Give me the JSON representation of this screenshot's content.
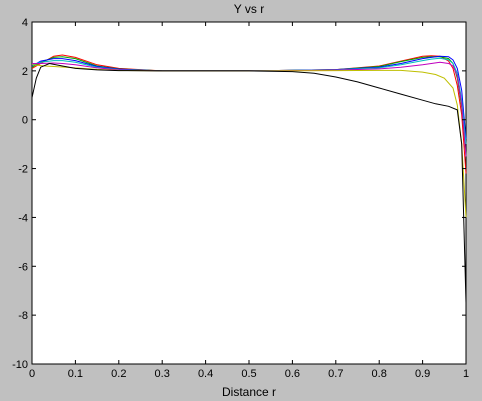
{
  "figure": {
    "background": "#c0c0c0",
    "axes_background": "#ffffff"
  },
  "chart_data": {
    "type": "line",
    "title": "Y vs r",
    "xlabel": "Distance r",
    "ylabel": "",
    "xlim": [
      0,
      1
    ],
    "ylim": [
      -10,
      4
    ],
    "grid": false,
    "legend": "none",
    "xticks": [
      0,
      0.1,
      0.2,
      0.3,
      0.4,
      0.5,
      0.6,
      0.7,
      0.8,
      0.9,
      1
    ],
    "xtick_labels": [
      "0",
      "0.1",
      "0.2",
      "0.3",
      "0.4",
      "0.5",
      "0.6",
      "0.7",
      "0.8",
      "0.9",
      "1"
    ],
    "yticks": [
      -10,
      -8,
      -6,
      -4,
      -2,
      0,
      2,
      4
    ],
    "ytick_labels": [
      "-10",
      "-8",
      "-6",
      "-4",
      "-2",
      "0",
      "2",
      "4"
    ],
    "series": [
      {
        "color": "#ff0000",
        "x": [
          0,
          0.02,
          0.05,
          0.07,
          0.1,
          0.15,
          0.2,
          0.3,
          0.5,
          0.7,
          0.8,
          0.85,
          0.9,
          0.92,
          0.94,
          0.96,
          0.97,
          0.98,
          0.99,
          1.0
        ],
        "y": [
          2.1,
          2.3,
          2.6,
          2.65,
          2.55,
          2.25,
          2.1,
          2.0,
          2.0,
          2.05,
          2.2,
          2.4,
          2.6,
          2.62,
          2.6,
          2.4,
          2.1,
          1.4,
          0.2,
          -2.2
        ]
      },
      {
        "color": "#00aa00",
        "x": [
          0,
          0.02,
          0.05,
          0.07,
          0.1,
          0.15,
          0.2,
          0.3,
          0.5,
          0.7,
          0.8,
          0.85,
          0.9,
          0.92,
          0.94,
          0.96,
          0.97,
          0.98,
          0.99,
          1.0
        ],
        "y": [
          2.15,
          2.35,
          2.55,
          2.58,
          2.5,
          2.2,
          2.08,
          2.0,
          2.0,
          2.05,
          2.18,
          2.38,
          2.55,
          2.58,
          2.58,
          2.5,
          2.3,
          1.7,
          0.5,
          -1.5
        ]
      },
      {
        "color": "#0000ff",
        "x": [
          0,
          0.02,
          0.05,
          0.07,
          0.1,
          0.15,
          0.2,
          0.3,
          0.5,
          0.7,
          0.8,
          0.85,
          0.9,
          0.92,
          0.94,
          0.96,
          0.97,
          0.98,
          0.99,
          1.0
        ],
        "y": [
          2.2,
          2.4,
          2.5,
          2.5,
          2.42,
          2.18,
          2.07,
          2.0,
          2.0,
          2.05,
          2.15,
          2.3,
          2.5,
          2.55,
          2.6,
          2.58,
          2.45,
          2.1,
          1.2,
          -0.8
        ]
      },
      {
        "color": "#00bfbf",
        "x": [
          0,
          0.02,
          0.05,
          0.07,
          0.1,
          0.15,
          0.2,
          0.3,
          0.5,
          0.7,
          0.8,
          0.85,
          0.9,
          0.92,
          0.94,
          0.96,
          0.97,
          0.98,
          0.99,
          1.0
        ],
        "y": [
          2.25,
          2.35,
          2.42,
          2.42,
          2.35,
          2.15,
          2.05,
          2.0,
          2.0,
          2.04,
          2.12,
          2.25,
          2.42,
          2.48,
          2.52,
          2.45,
          2.3,
          1.9,
          0.8,
          -1.0
        ]
      },
      {
        "color": "#bf00bf",
        "x": [
          0,
          0.02,
          0.05,
          0.07,
          0.1,
          0.15,
          0.2,
          0.3,
          0.5,
          0.7,
          0.8,
          0.85,
          0.9,
          0.92,
          0.94,
          0.96,
          0.97,
          0.98,
          0.99,
          1.0
        ],
        "y": [
          2.3,
          2.3,
          2.32,
          2.3,
          2.25,
          2.12,
          2.04,
          2.0,
          2.0,
          2.03,
          2.08,
          2.15,
          2.25,
          2.3,
          2.35,
          2.3,
          2.2,
          1.8,
          0.6,
          -1.5
        ]
      },
      {
        "color": "#bfbf00",
        "x": [
          0,
          0.03,
          0.05,
          0.1,
          0.15,
          0.2,
          0.3,
          0.5,
          0.7,
          0.8,
          0.85,
          0.9,
          0.93,
          0.95,
          0.97,
          0.98,
          0.99,
          1.0
        ],
        "y": [
          2.25,
          2.2,
          2.18,
          2.12,
          2.06,
          2.02,
          2.0,
          2.0,
          2.01,
          2.02,
          2.02,
          1.95,
          1.85,
          1.7,
          1.3,
          0.6,
          -1.0,
          -4.0
        ]
      },
      {
        "color": "#000000",
        "x": [
          0,
          0.01,
          0.02,
          0.04,
          0.07,
          0.1,
          0.15,
          0.2,
          0.3,
          0.5,
          0.6,
          0.65,
          0.7,
          0.75,
          0.8,
          0.85,
          0.9,
          0.93,
          0.96,
          0.98,
          0.99,
          1.0
        ],
        "y": [
          0.9,
          1.7,
          2.15,
          2.3,
          2.2,
          2.1,
          2.04,
          2.01,
          2.0,
          2.0,
          1.97,
          1.9,
          1.75,
          1.55,
          1.3,
          1.05,
          0.8,
          0.65,
          0.55,
          0.4,
          -1.0,
          -7.5
        ]
      }
    ]
  }
}
